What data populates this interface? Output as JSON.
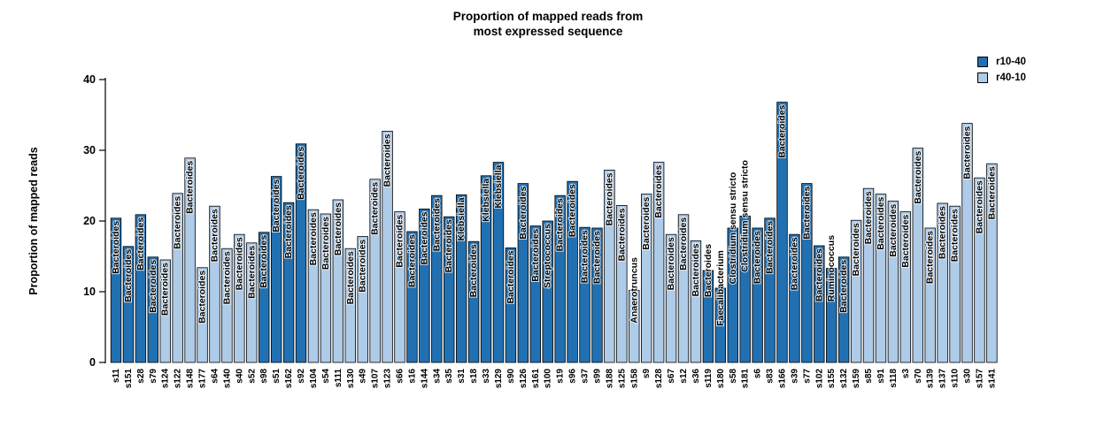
{
  "title": {
    "line1": "Proportion of mapped reads from",
    "line2": "most expressed sequence"
  },
  "y_axis": {
    "label": "Proportion of mapped reads",
    "ticks": [
      0,
      10,
      20,
      30,
      40
    ]
  },
  "legend": {
    "items": [
      {
        "label": "r10-40",
        "color": "#2170B1"
      },
      {
        "label": "r40-10",
        "color": "#AECBE8"
      }
    ]
  },
  "colors": {
    "bar_border": "#000000",
    "series": {
      "r10-40": "#2170B1",
      "r40-10": "#AECBE8"
    }
  },
  "chart_data": {
    "type": "bar",
    "title": "Proportion of mapped reads from most expressed sequence",
    "xlabel": "",
    "ylabel": "Proportion of mapped reads",
    "ylim": [
      0,
      40
    ],
    "grid": false,
    "legend_position": "topright",
    "legend_entries": [
      "r10-40",
      "r40-10"
    ],
    "bars": [
      {
        "sample": "s11",
        "value": 20.4,
        "group": "r10-40",
        "label": "Bacteroides"
      },
      {
        "sample": "s151",
        "value": 16.4,
        "group": "r10-40",
        "label": "Bacteroides"
      },
      {
        "sample": "s28",
        "value": 20.9,
        "group": "r10-40",
        "label": "Bacteroides"
      },
      {
        "sample": "s79",
        "value": 14.9,
        "group": "r10-40",
        "label": "Bacteroides"
      },
      {
        "sample": "s124",
        "value": 14.5,
        "group": "r40-10",
        "label": "Bacteroides"
      },
      {
        "sample": "s122",
        "value": 23.9,
        "group": "r40-10",
        "label": "Bacteroides"
      },
      {
        "sample": "s148",
        "value": 28.9,
        "group": "r40-10",
        "label": "Bacteroides"
      },
      {
        "sample": "s177",
        "value": 13.4,
        "group": "r40-10",
        "label": "Bacteroides"
      },
      {
        "sample": "s64",
        "value": 22.1,
        "group": "r40-10",
        "label": "Bacteroides"
      },
      {
        "sample": "s140",
        "value": 16.1,
        "group": "r40-10",
        "label": "Bacteroides"
      },
      {
        "sample": "s40",
        "value": 18.1,
        "group": "r40-10",
        "label": "Bacteroides"
      },
      {
        "sample": "s52",
        "value": 16.9,
        "group": "r40-10",
        "label": "Bacteroides"
      },
      {
        "sample": "s98",
        "value": 18.4,
        "group": "r10-40",
        "label": "Bacteroides"
      },
      {
        "sample": "s51",
        "value": 26.3,
        "group": "r10-40",
        "label": "Bacteroides"
      },
      {
        "sample": "s162",
        "value": 22.6,
        "group": "r10-40",
        "label": "Bacteroides"
      },
      {
        "sample": "s92",
        "value": 30.9,
        "group": "r10-40",
        "label": "Bacteroides"
      },
      {
        "sample": "s104",
        "value": 21.6,
        "group": "r40-10",
        "label": "Bacteroides"
      },
      {
        "sample": "s54",
        "value": 21.0,
        "group": "r40-10",
        "label": "Bacteroides"
      },
      {
        "sample": "s111",
        "value": 23.0,
        "group": "r40-10",
        "label": "Bacteroides"
      },
      {
        "sample": "s130",
        "value": 16.1,
        "group": "r40-10",
        "label": "Bacteroides"
      },
      {
        "sample": "s49",
        "value": 17.8,
        "group": "r40-10",
        "label": "Bacteroides"
      },
      {
        "sample": "s107",
        "value": 25.9,
        "group": "r40-10",
        "label": "Bacteroides"
      },
      {
        "sample": "s123",
        "value": 32.7,
        "group": "r40-10",
        "label": "Bacteroides"
      },
      {
        "sample": "s66",
        "value": 21.3,
        "group": "r40-10",
        "label": "Bacteroides"
      },
      {
        "sample": "s16",
        "value": 18.5,
        "group": "r10-40",
        "label": "Bacteroides"
      },
      {
        "sample": "s144",
        "value": 21.7,
        "group": "r10-40",
        "label": "Bacteroides"
      },
      {
        "sample": "s34",
        "value": 23.6,
        "group": "r10-40",
        "label": "Bacteroides"
      },
      {
        "sample": "s35",
        "value": 20.6,
        "group": "r10-40",
        "label": "Bacteroides"
      },
      {
        "sample": "s31",
        "value": 23.7,
        "group": "r10-40",
        "label": "Klebsiella"
      },
      {
        "sample": "s18",
        "value": 17.1,
        "group": "r10-40",
        "label": "Bacteroides"
      },
      {
        "sample": "s33",
        "value": 26.4,
        "group": "r10-40",
        "label": "Klebsiella"
      },
      {
        "sample": "s129",
        "value": 28.3,
        "group": "r10-40",
        "label": "Klebsiella"
      },
      {
        "sample": "s90",
        "value": 16.2,
        "group": "r10-40",
        "label": "Bacteroides"
      },
      {
        "sample": "s126",
        "value": 25.3,
        "group": "r10-40",
        "label": "Bacteroides"
      },
      {
        "sample": "s161",
        "value": 19.3,
        "group": "r10-40",
        "label": "Bacteroides"
      },
      {
        "sample": "s100",
        "value": 20.0,
        "group": "r10-40",
        "label": "Streptococcus"
      },
      {
        "sample": "s19",
        "value": 23.6,
        "group": "r10-40",
        "label": "Bacteroides"
      },
      {
        "sample": "s96",
        "value": 25.6,
        "group": "r10-40",
        "label": "Bacteroides"
      },
      {
        "sample": "s37",
        "value": 19.1,
        "group": "r10-40",
        "label": "Bacteroides"
      },
      {
        "sample": "s99",
        "value": 19.0,
        "group": "r10-40",
        "label": "Bacteroides"
      },
      {
        "sample": "s188",
        "value": 27.2,
        "group": "r40-10",
        "label": "Bacteroides"
      },
      {
        "sample": "s125",
        "value": 22.2,
        "group": "r40-10",
        "label": "Bacteroides"
      },
      {
        "sample": "s158",
        "value": 10.2,
        "group": "r40-10",
        "label": "Anaerotruncus"
      },
      {
        "sample": "s9",
        "value": 23.8,
        "group": "r40-10",
        "label": "Bacteroides"
      },
      {
        "sample": "s128",
        "value": 28.3,
        "group": "r40-10",
        "label": "Bacteroides"
      },
      {
        "sample": "s67",
        "value": 18.1,
        "group": "r40-10",
        "label": "Bacteroides"
      },
      {
        "sample": "s12",
        "value": 20.9,
        "group": "r40-10",
        "label": "Bacteroides"
      },
      {
        "sample": "s36",
        "value": 17.2,
        "group": "r40-10",
        "label": "Bacteroides"
      },
      {
        "sample": "s119",
        "value": 13.0,
        "group": "r10-40",
        "label": "Bacteroides"
      },
      {
        "sample": "s180",
        "value": 10.5,
        "group": "r10-40",
        "label": "Faecalibacterium"
      },
      {
        "sample": "s58",
        "value": 19.0,
        "group": "r10-40",
        "label": "Clostridium sensu stricto"
      },
      {
        "sample": "s181",
        "value": 20.7,
        "group": "r10-40",
        "label": "Clostridium sensu stricto"
      },
      {
        "sample": "s6",
        "value": 19.0,
        "group": "r10-40",
        "label": "Bacteroides"
      },
      {
        "sample": "s83",
        "value": 20.4,
        "group": "r10-40",
        "label": "Bacteroides"
      },
      {
        "sample": "s166",
        "value": 36.8,
        "group": "r10-40",
        "label": "Bacteroides"
      },
      {
        "sample": "s39",
        "value": 18.1,
        "group": "r10-40",
        "label": "Bacteroides"
      },
      {
        "sample": "s77",
        "value": 25.3,
        "group": "r10-40",
        "label": "Bacteroides"
      },
      {
        "sample": "s102",
        "value": 16.5,
        "group": "r10-40",
        "label": "Bacteroides"
      },
      {
        "sample": "s155",
        "value": 13.3,
        "group": "r10-40",
        "label": "Ruminococcus"
      },
      {
        "sample": "s132",
        "value": 14.9,
        "group": "r10-40",
        "label": "Bacteroides"
      },
      {
        "sample": "s159",
        "value": 20.1,
        "group": "r40-10",
        "label": "Bacteroides"
      },
      {
        "sample": "s85",
        "value": 24.6,
        "group": "r40-10",
        "label": "Bacteroides"
      },
      {
        "sample": "s91",
        "value": 23.8,
        "group": "r40-10",
        "label": "Bacteroides"
      },
      {
        "sample": "s118",
        "value": 22.8,
        "group": "r40-10",
        "label": "Bacteroides"
      },
      {
        "sample": "s3",
        "value": 21.3,
        "group": "r40-10",
        "label": "Bacteroides"
      },
      {
        "sample": "s70",
        "value": 30.3,
        "group": "r40-10",
        "label": "Bacteroides"
      },
      {
        "sample": "s139",
        "value": 19.0,
        "group": "r40-10",
        "label": "Bacteroides"
      },
      {
        "sample": "s137",
        "value": 22.5,
        "group": "r40-10",
        "label": "Bacteroides"
      },
      {
        "sample": "s110",
        "value": 22.1,
        "group": "r40-10",
        "label": "Bacteroides"
      },
      {
        "sample": "s30",
        "value": 33.8,
        "group": "r40-10",
        "label": "Bacteroides"
      },
      {
        "sample": "s157",
        "value": 26.1,
        "group": "r40-10",
        "label": "Bacteroides"
      },
      {
        "sample": "s141",
        "value": 28.1,
        "group": "r40-10",
        "label": "Bacteroides"
      }
    ]
  }
}
